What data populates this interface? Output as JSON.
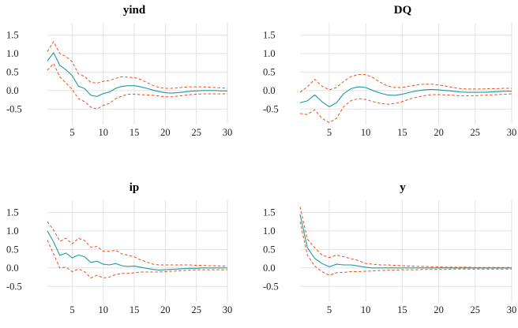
{
  "chart_data": [
    {
      "type": "line",
      "title": "yind",
      "xlabel": "",
      "ylabel": "",
      "xlim": [
        1,
        30
      ],
      "ylim": [
        -0.75,
        1.7
      ],
      "xticks": [
        "5",
        "10",
        "15",
        "20",
        "25",
        "30"
      ],
      "yticks": [
        "1.5",
        "1.0",
        "0.5",
        "0.0",
        "-0.5"
      ],
      "x": [
        1,
        2,
        3,
        4,
        5,
        6,
        7,
        8,
        9,
        10,
        11,
        12,
        13,
        14,
        15,
        16,
        17,
        18,
        19,
        20,
        21,
        22,
        23,
        24,
        25,
        26,
        27,
        28,
        29,
        30
      ],
      "series": [
        {
          "name": "upper",
          "values": [
            1.05,
            1.32,
            1.0,
            0.92,
            0.78,
            0.45,
            0.38,
            0.22,
            0.2,
            0.25,
            0.27,
            0.33,
            0.37,
            0.36,
            0.35,
            0.3,
            0.22,
            0.14,
            0.08,
            0.06,
            0.06,
            0.07,
            0.09,
            0.1,
            0.1,
            0.1,
            0.09,
            0.08,
            0.07,
            0.06
          ]
        },
        {
          "name": "response",
          "values": [
            0.8,
            1.02,
            0.68,
            0.56,
            0.4,
            0.12,
            0.05,
            -0.13,
            -0.16,
            -0.08,
            -0.04,
            0.06,
            0.11,
            0.13,
            0.13,
            0.1,
            0.06,
            0.01,
            -0.03,
            -0.06,
            -0.07,
            -0.06,
            -0.04,
            -0.02,
            -0.01,
            0.0,
            0.0,
            0.0,
            -0.01,
            -0.01
          ]
        },
        {
          "name": "lower",
          "values": [
            0.55,
            0.73,
            0.37,
            0.2,
            0.03,
            -0.22,
            -0.3,
            -0.45,
            -0.5,
            -0.4,
            -0.35,
            -0.22,
            -0.15,
            -0.1,
            -0.1,
            -0.11,
            -0.12,
            -0.13,
            -0.15,
            -0.17,
            -0.17,
            -0.15,
            -0.13,
            -0.11,
            -0.1,
            -0.09,
            -0.09,
            -0.09,
            -0.09,
            -0.09
          ]
        }
      ]
    },
    {
      "type": "line",
      "title": "DQ",
      "xlabel": "",
      "ylabel": "",
      "xlim": [
        1,
        30
      ],
      "ylim": [
        -0.75,
        1.7
      ],
      "xticks": [
        "5",
        "10",
        "15",
        "20",
        "25",
        "30"
      ],
      "yticks": [
        "1.5",
        "1.0",
        "0.5",
        "0.0",
        "-0.5"
      ],
      "x": [
        1,
        2,
        3,
        4,
        5,
        6,
        7,
        8,
        9,
        10,
        11,
        12,
        13,
        14,
        15,
        16,
        17,
        18,
        19,
        20,
        21,
        22,
        23,
        24,
        25,
        26,
        27,
        28,
        29,
        30
      ],
      "series": [
        {
          "name": "upper",
          "values": [
            -0.05,
            0.1,
            0.3,
            0.12,
            0.02,
            0.08,
            0.25,
            0.38,
            0.43,
            0.43,
            0.35,
            0.22,
            0.12,
            0.08,
            0.08,
            0.12,
            0.15,
            0.17,
            0.17,
            0.15,
            0.12,
            0.08,
            0.05,
            0.04,
            0.04,
            0.04,
            0.05,
            0.05,
            0.06,
            0.06
          ]
        },
        {
          "name": "response",
          "values": [
            -0.33,
            -0.28,
            -0.12,
            -0.3,
            -0.44,
            -0.33,
            -0.08,
            0.05,
            0.1,
            0.08,
            0.0,
            -0.07,
            -0.12,
            -0.13,
            -0.1,
            -0.05,
            -0.01,
            0.02,
            0.03,
            0.02,
            0.0,
            -0.02,
            -0.04,
            -0.05,
            -0.05,
            -0.05,
            -0.04,
            -0.03,
            -0.02,
            -0.02
          ]
        },
        {
          "name": "lower",
          "values": [
            -0.62,
            -0.65,
            -0.52,
            -0.75,
            -0.87,
            -0.75,
            -0.43,
            -0.27,
            -0.22,
            -0.24,
            -0.3,
            -0.35,
            -0.37,
            -0.35,
            -0.3,
            -0.23,
            -0.18,
            -0.14,
            -0.11,
            -0.11,
            -0.12,
            -0.13,
            -0.14,
            -0.14,
            -0.14,
            -0.13,
            -0.12,
            -0.11,
            -0.1,
            -0.09
          ]
        }
      ]
    },
    {
      "type": "line",
      "title": "ip",
      "xlabel": "",
      "ylabel": "",
      "xlim": [
        1,
        30
      ],
      "ylim": [
        -0.75,
        1.7
      ],
      "xticks": [
        "5",
        "10",
        "15",
        "20",
        "25",
        "30"
      ],
      "yticks": [
        "1.5",
        "1.0",
        "0.5",
        "0.0",
        "-0.5"
      ],
      "x": [
        1,
        2,
        3,
        4,
        5,
        6,
        7,
        8,
        9,
        10,
        11,
        12,
        13,
        14,
        15,
        16,
        17,
        18,
        19,
        20,
        21,
        22,
        23,
        24,
        25,
        26,
        27,
        28,
        29,
        30
      ],
      "series": [
        {
          "name": "upper",
          "values": [
            1.25,
            1.02,
            0.72,
            0.8,
            0.65,
            0.8,
            0.74,
            0.56,
            0.58,
            0.45,
            0.45,
            0.48,
            0.38,
            0.34,
            0.3,
            0.22,
            0.16,
            0.1,
            0.08,
            0.08,
            0.08,
            0.08,
            0.08,
            0.08,
            0.07,
            0.07,
            0.06,
            0.06,
            0.05,
            0.05
          ]
        },
        {
          "name": "response",
          "values": [
            1.0,
            0.7,
            0.34,
            0.4,
            0.27,
            0.35,
            0.3,
            0.15,
            0.18,
            0.1,
            0.08,
            0.12,
            0.06,
            0.04,
            0.05,
            0.02,
            -0.01,
            -0.04,
            -0.06,
            -0.05,
            -0.04,
            -0.03,
            -0.02,
            -0.01,
            -0.01,
            0.0,
            0.0,
            0.0,
            0.0,
            0.0
          ]
        },
        {
          "name": "lower",
          "values": [
            0.75,
            0.38,
            0.0,
            0.02,
            -0.1,
            -0.03,
            -0.1,
            -0.27,
            -0.2,
            -0.27,
            -0.25,
            -0.18,
            -0.15,
            -0.15,
            -0.13,
            -0.11,
            -0.11,
            -0.11,
            -0.11,
            -0.1,
            -0.09,
            -0.08,
            -0.07,
            -0.06,
            -0.05,
            -0.05,
            -0.05,
            -0.05,
            -0.05,
            -0.05
          ]
        }
      ]
    },
    {
      "type": "line",
      "title": "y",
      "xlabel": "",
      "ylabel": "",
      "xlim": [
        1,
        30
      ],
      "ylim": [
        -0.75,
        1.7
      ],
      "xticks": [
        "5",
        "10",
        "15",
        "20",
        "25",
        "30"
      ],
      "yticks": [
        "1.5",
        "1.0",
        "0.5",
        "0.0",
        "-0.5"
      ],
      "x": [
        1,
        2,
        3,
        4,
        5,
        6,
        7,
        8,
        9,
        10,
        11,
        12,
        13,
        14,
        15,
        16,
        17,
        18,
        19,
        20,
        21,
        22,
        23,
        24,
        25,
        26,
        27,
        28,
        29,
        30
      ],
      "series": [
        {
          "name": "upper",
          "values": [
            1.65,
            0.78,
            0.55,
            0.35,
            0.28,
            0.35,
            0.3,
            0.25,
            0.2,
            0.12,
            0.1,
            0.08,
            0.08,
            0.07,
            0.06,
            0.05,
            0.04,
            0.04,
            0.03,
            0.03,
            0.02,
            0.02,
            0.02,
            0.02,
            0.01,
            0.01,
            0.01,
            0.01,
            0.01,
            0.01
          ]
        },
        {
          "name": "response",
          "values": [
            1.45,
            0.55,
            0.26,
            0.12,
            0.03,
            0.1,
            0.08,
            0.08,
            0.05,
            0.02,
            0.0,
            0.0,
            0.0,
            0.0,
            0.0,
            0.0,
            0.0,
            0.0,
            0.0,
            0.0,
            0.0,
            0.0,
            0.0,
            0.0,
            0.0,
            0.0,
            0.0,
            0.0,
            0.0,
            0.0
          ]
        },
        {
          "name": "lower",
          "values": [
            1.25,
            0.35,
            0.05,
            -0.1,
            -0.2,
            -0.13,
            -0.12,
            -0.1,
            -0.1,
            -0.09,
            -0.08,
            -0.07,
            -0.06,
            -0.06,
            -0.05,
            -0.05,
            -0.05,
            -0.04,
            -0.04,
            -0.04,
            -0.04,
            -0.03,
            -0.03,
            -0.03,
            -0.03,
            -0.03,
            -0.03,
            -0.03,
            -0.03,
            -0.03
          ]
        }
      ]
    }
  ]
}
